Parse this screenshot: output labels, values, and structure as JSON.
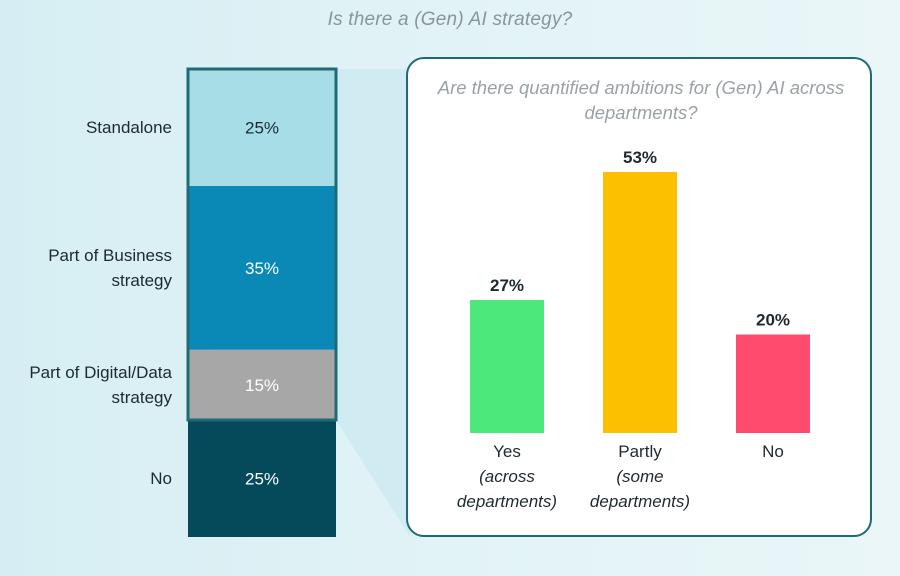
{
  "title": "Is there a (Gen) AI strategy?",
  "colors": {
    "border": "#1f6b74",
    "standalone": "#a6dde7",
    "business": "#0a88b6",
    "digital": "#a7a7a7",
    "no_stack": "#054a5a",
    "yes": "#4de87c",
    "partly": "#fcc000",
    "no_bar": "#ff4b6e"
  },
  "chart_data": [
    {
      "type": "bar",
      "stacked": true,
      "title": "Is there a (Gen) AI strategy?",
      "categories": [
        "Standalone",
        "Part of Business strategy",
        "Part of Digital/Data strategy",
        "No"
      ],
      "label_lines": [
        [
          "Standalone"
        ],
        [
          "Part of Business",
          "strategy"
        ],
        [
          "Part of Digital/Data",
          "strategy"
        ],
        [
          "No"
        ]
      ],
      "values": [
        25,
        35,
        15,
        25
      ],
      "value_labels": [
        "25%",
        "35%",
        "15%",
        "25%"
      ],
      "colors": [
        "#a6dde7",
        "#0a88b6",
        "#a7a7a7",
        "#054a5a"
      ],
      "value_text_colors": [
        "#1e2a30",
        "#ffffff",
        "#ffffff",
        "#ffffff"
      ],
      "unit": "%"
    },
    {
      "type": "bar",
      "title": "Are there quantified ambitions for (Gen) AI across departments?",
      "title_lines": [
        "Are there quantified ambitions for (Gen) AI across",
        "departments?"
      ],
      "categories": [
        "Yes (across departments)",
        "Partly (some departments)",
        "No"
      ],
      "label_main": [
        "Yes",
        "Partly",
        "No"
      ],
      "label_sub": [
        [
          "(across",
          "departments)"
        ],
        [
          "(some",
          "departments)"
        ],
        []
      ],
      "values": [
        27,
        53,
        20
      ],
      "value_labels": [
        "27%",
        "53%",
        "20%"
      ],
      "colors": [
        "#4de87c",
        "#fcc000",
        "#ff4b6e"
      ],
      "ylim": [
        0,
        53
      ],
      "unit": "%"
    }
  ]
}
